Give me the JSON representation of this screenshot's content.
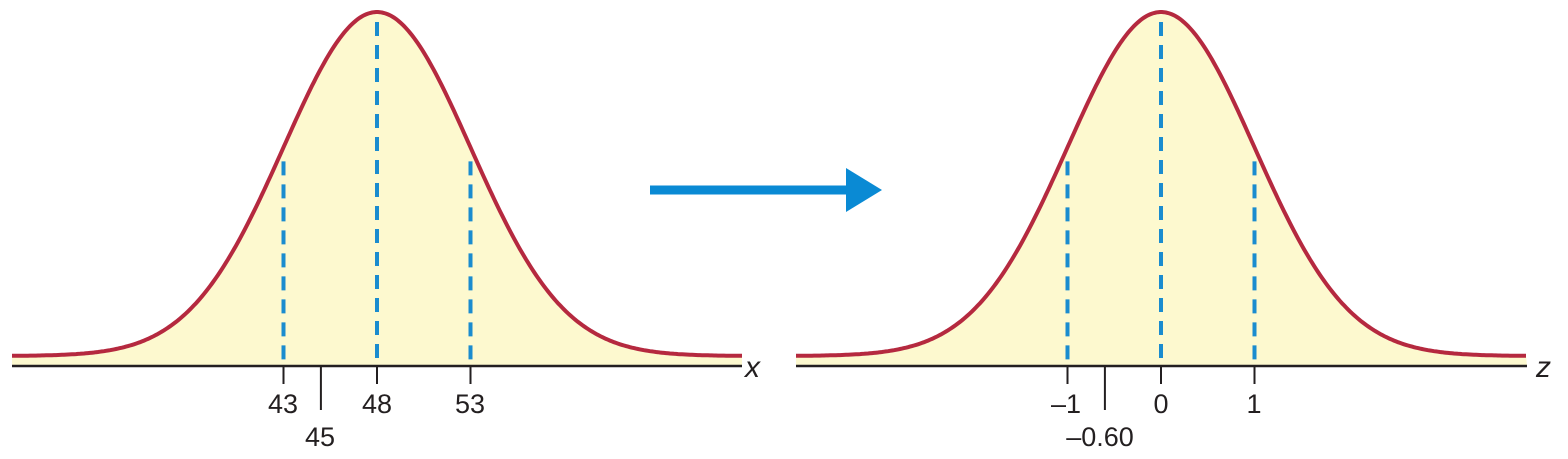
{
  "colors": {
    "curve": "#b5293f",
    "fill": "#fdf9cf",
    "dashed": "#1a8ccf",
    "axis": "#231f20",
    "arrow": "#0a8ad4"
  },
  "left_panel": {
    "axis_variable": "x",
    "mean": 48,
    "sd": 5,
    "dashed_at": [
      43,
      48,
      53
    ],
    "marked_value": 45,
    "tick_labels": [
      "43",
      "48",
      "53"
    ],
    "marked_label": "45"
  },
  "right_panel": {
    "axis_variable": "z",
    "mean": 0,
    "sd": 1,
    "dashed_at": [
      -1,
      0,
      1
    ],
    "marked_value": -0.6,
    "tick_labels": [
      "–1",
      "0",
      "1"
    ],
    "marked_label": "–0.60"
  },
  "transform_arrow": {
    "direction": "right"
  }
}
